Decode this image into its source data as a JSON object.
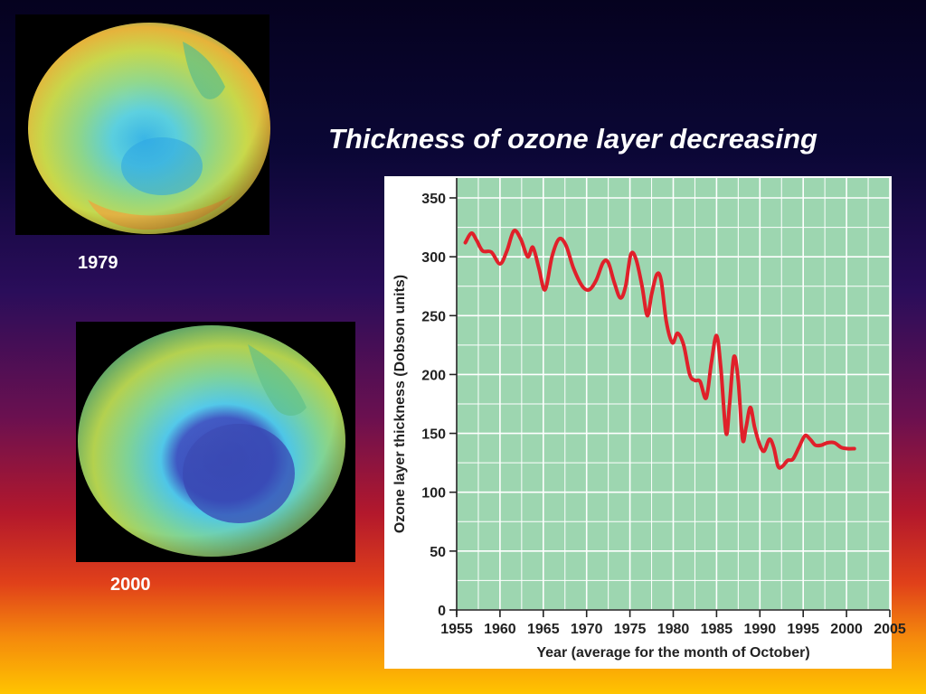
{
  "slide": {
    "title": "Thickness of ozone layer decreasing"
  },
  "globes": [
    {
      "year_label": "1979"
    },
    {
      "year_label": "2000"
    }
  ],
  "colors": {
    "plot_bg": "#9dd6b0",
    "grid": "#ffffff",
    "line": "#e0202a",
    "axis": "#222222"
  },
  "chart_data": {
    "type": "line",
    "title": "",
    "xlabel": "Year (average for the month of October)",
    "ylabel": "Ozone layer thickness (Dobson units)",
    "xlim": [
      1955,
      2005
    ],
    "ylim": [
      0,
      350
    ],
    "x_ticks": [
      1955,
      1960,
      1965,
      1970,
      1975,
      1980,
      1985,
      1990,
      1995,
      2000,
      2005
    ],
    "y_ticks": [
      0,
      50,
      100,
      150,
      200,
      250,
      300,
      350
    ],
    "grid": true,
    "series": [
      {
        "x": [
          1956,
          1956.7,
          1957.3,
          1958,
          1959,
          1960,
          1960.8,
          1961.6,
          1962.4,
          1963.2,
          1963.8,
          1964.5,
          1965.2,
          1966,
          1966.8,
          1967.6,
          1968.5,
          1969.5,
          1970.3,
          1971.1,
          1971.9,
          1972.5,
          1973.2,
          1973.9,
          1974.5,
          1975.1,
          1975.7,
          1976.4,
          1977,
          1977.5,
          1978.1,
          1978.6,
          1979.2,
          1979.9,
          1980.5,
          1981.2,
          1981.9,
          1982.5,
          1983.1,
          1983.8,
          1984.4,
          1985,
          1985.5,
          1986.1,
          1986.5,
          1987,
          1987.5,
          1988,
          1988.4,
          1988.9,
          1989.4,
          1990,
          1990.5,
          1991.1,
          1991.6,
          1992.1,
          1992.6,
          1993.2,
          1993.8,
          1994.5,
          1995.2,
          1995.8,
          1996.4,
          1997.1,
          1997.8,
          1998.6,
          1999.4,
          2000.1,
          2000.9
        ],
        "y": [
          312,
          320,
          314,
          305,
          304,
          294,
          305,
          322,
          315,
          300,
          308,
          290,
          272,
          300,
          315,
          310,
          290,
          275,
          272,
          280,
          295,
          295,
          278,
          265,
          275,
          302,
          298,
          275,
          250,
          268,
          285,
          280,
          245,
          227,
          235,
          225,
          200,
          195,
          194,
          180,
          210,
          233,
          205,
          150,
          175,
          215,
          195,
          145,
          155,
          172,
          155,
          140,
          135,
          145,
          138,
          122,
          122,
          127,
          128,
          138,
          148,
          145,
          140,
          140,
          142,
          142,
          138,
          137,
          137
        ]
      }
    ]
  }
}
